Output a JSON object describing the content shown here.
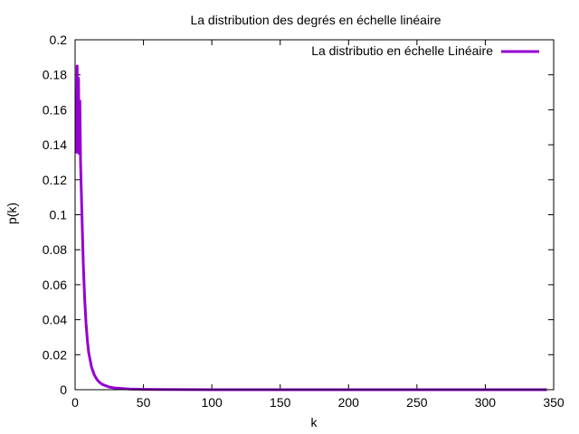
{
  "chart_data": {
    "type": "line",
    "title": "La distribution des degrés  en échelle linéaire",
    "xlabel": "k",
    "ylabel": "p(k)",
    "xlim": [
      0,
      350
    ],
    "ylim": [
      0,
      0.2
    ],
    "x_ticks": [
      0,
      50,
      100,
      150,
      200,
      250,
      300,
      350
    ],
    "x_tick_labels": [
      "0",
      "50",
      "100",
      "150",
      "200",
      "250",
      "300",
      "350"
    ],
    "y_ticks": [
      0,
      0.02,
      0.04,
      0.06,
      0.08,
      0.1,
      0.12,
      0.14,
      0.16,
      0.18,
      0.2
    ],
    "y_tick_labels": [
      "0",
      "0.02",
      "0.04",
      "0.06",
      "0.08",
      "0.1",
      "0.12",
      "0.14",
      "0.16",
      "0.18",
      "0.2"
    ],
    "grid": false,
    "legend_position": "top-right",
    "series": [
      {
        "name": "La distributio en échelle Linéaire",
        "color": "#9400d3",
        "x": [
          1,
          1.5,
          2,
          2.5,
          3,
          3.5,
          4,
          5,
          6,
          7,
          8,
          9,
          10,
          12,
          14,
          16,
          18,
          20,
          25,
          30,
          40,
          50,
          60,
          80,
          100,
          150,
          200,
          250,
          300,
          345
        ],
        "y": [
          0.135,
          0.185,
          0.14,
          0.178,
          0.135,
          0.165,
          0.13,
          0.1,
          0.072,
          0.052,
          0.038,
          0.028,
          0.021,
          0.013,
          0.0085,
          0.0058,
          0.0041,
          0.003,
          0.0015,
          0.0009,
          0.0004,
          0.0002,
          0.0001,
          5e-05,
          2e-05,
          1e-05,
          5e-06,
          3e-06,
          2e-06,
          1e-06
        ]
      }
    ]
  }
}
